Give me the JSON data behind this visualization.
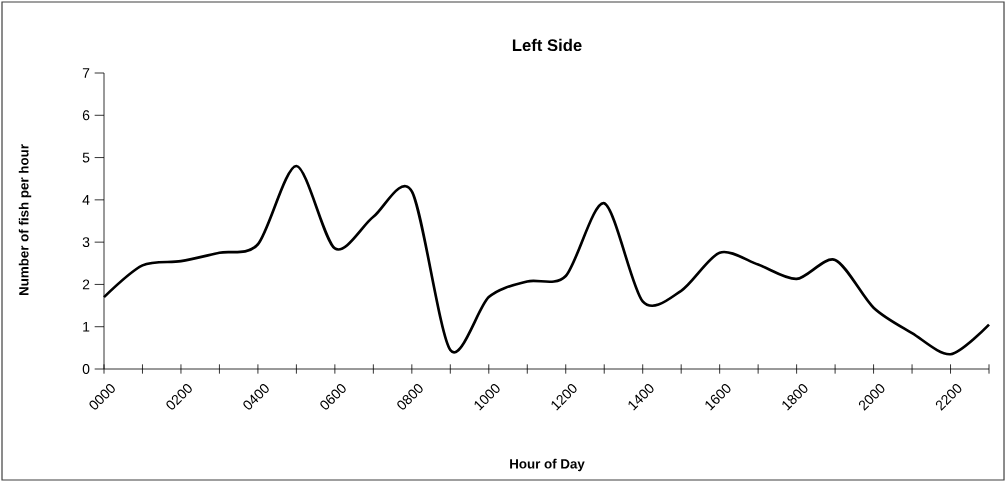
{
  "chart_data": {
    "type": "line",
    "title": "Left Side",
    "xlabel": "Hour of Day",
    "ylabel": "Number of fish per hour",
    "categories": [
      "0000",
      null,
      "0200",
      null,
      "0400",
      null,
      "0600",
      null,
      "0800",
      null,
      "1000",
      null,
      "1200",
      null,
      "1400",
      null,
      "1600",
      null,
      "1800",
      null,
      "2000",
      null,
      "2200",
      null
    ],
    "values": [
      1.7,
      2.45,
      2.55,
      2.75,
      2.95,
      4.8,
      2.85,
      3.6,
      4.2,
      0.45,
      1.7,
      2.07,
      2.2,
      3.92,
      1.6,
      1.85,
      2.75,
      2.47,
      2.13,
      2.58,
      1.45,
      0.85,
      0.35,
      1.05
    ],
    "color": "#000000",
    "ylim": [
      0,
      7
    ],
    "yticks": [
      0,
      1,
      2,
      3,
      4,
      5,
      6,
      7
    ],
    "marker": "none",
    "line_style": "solid"
  }
}
